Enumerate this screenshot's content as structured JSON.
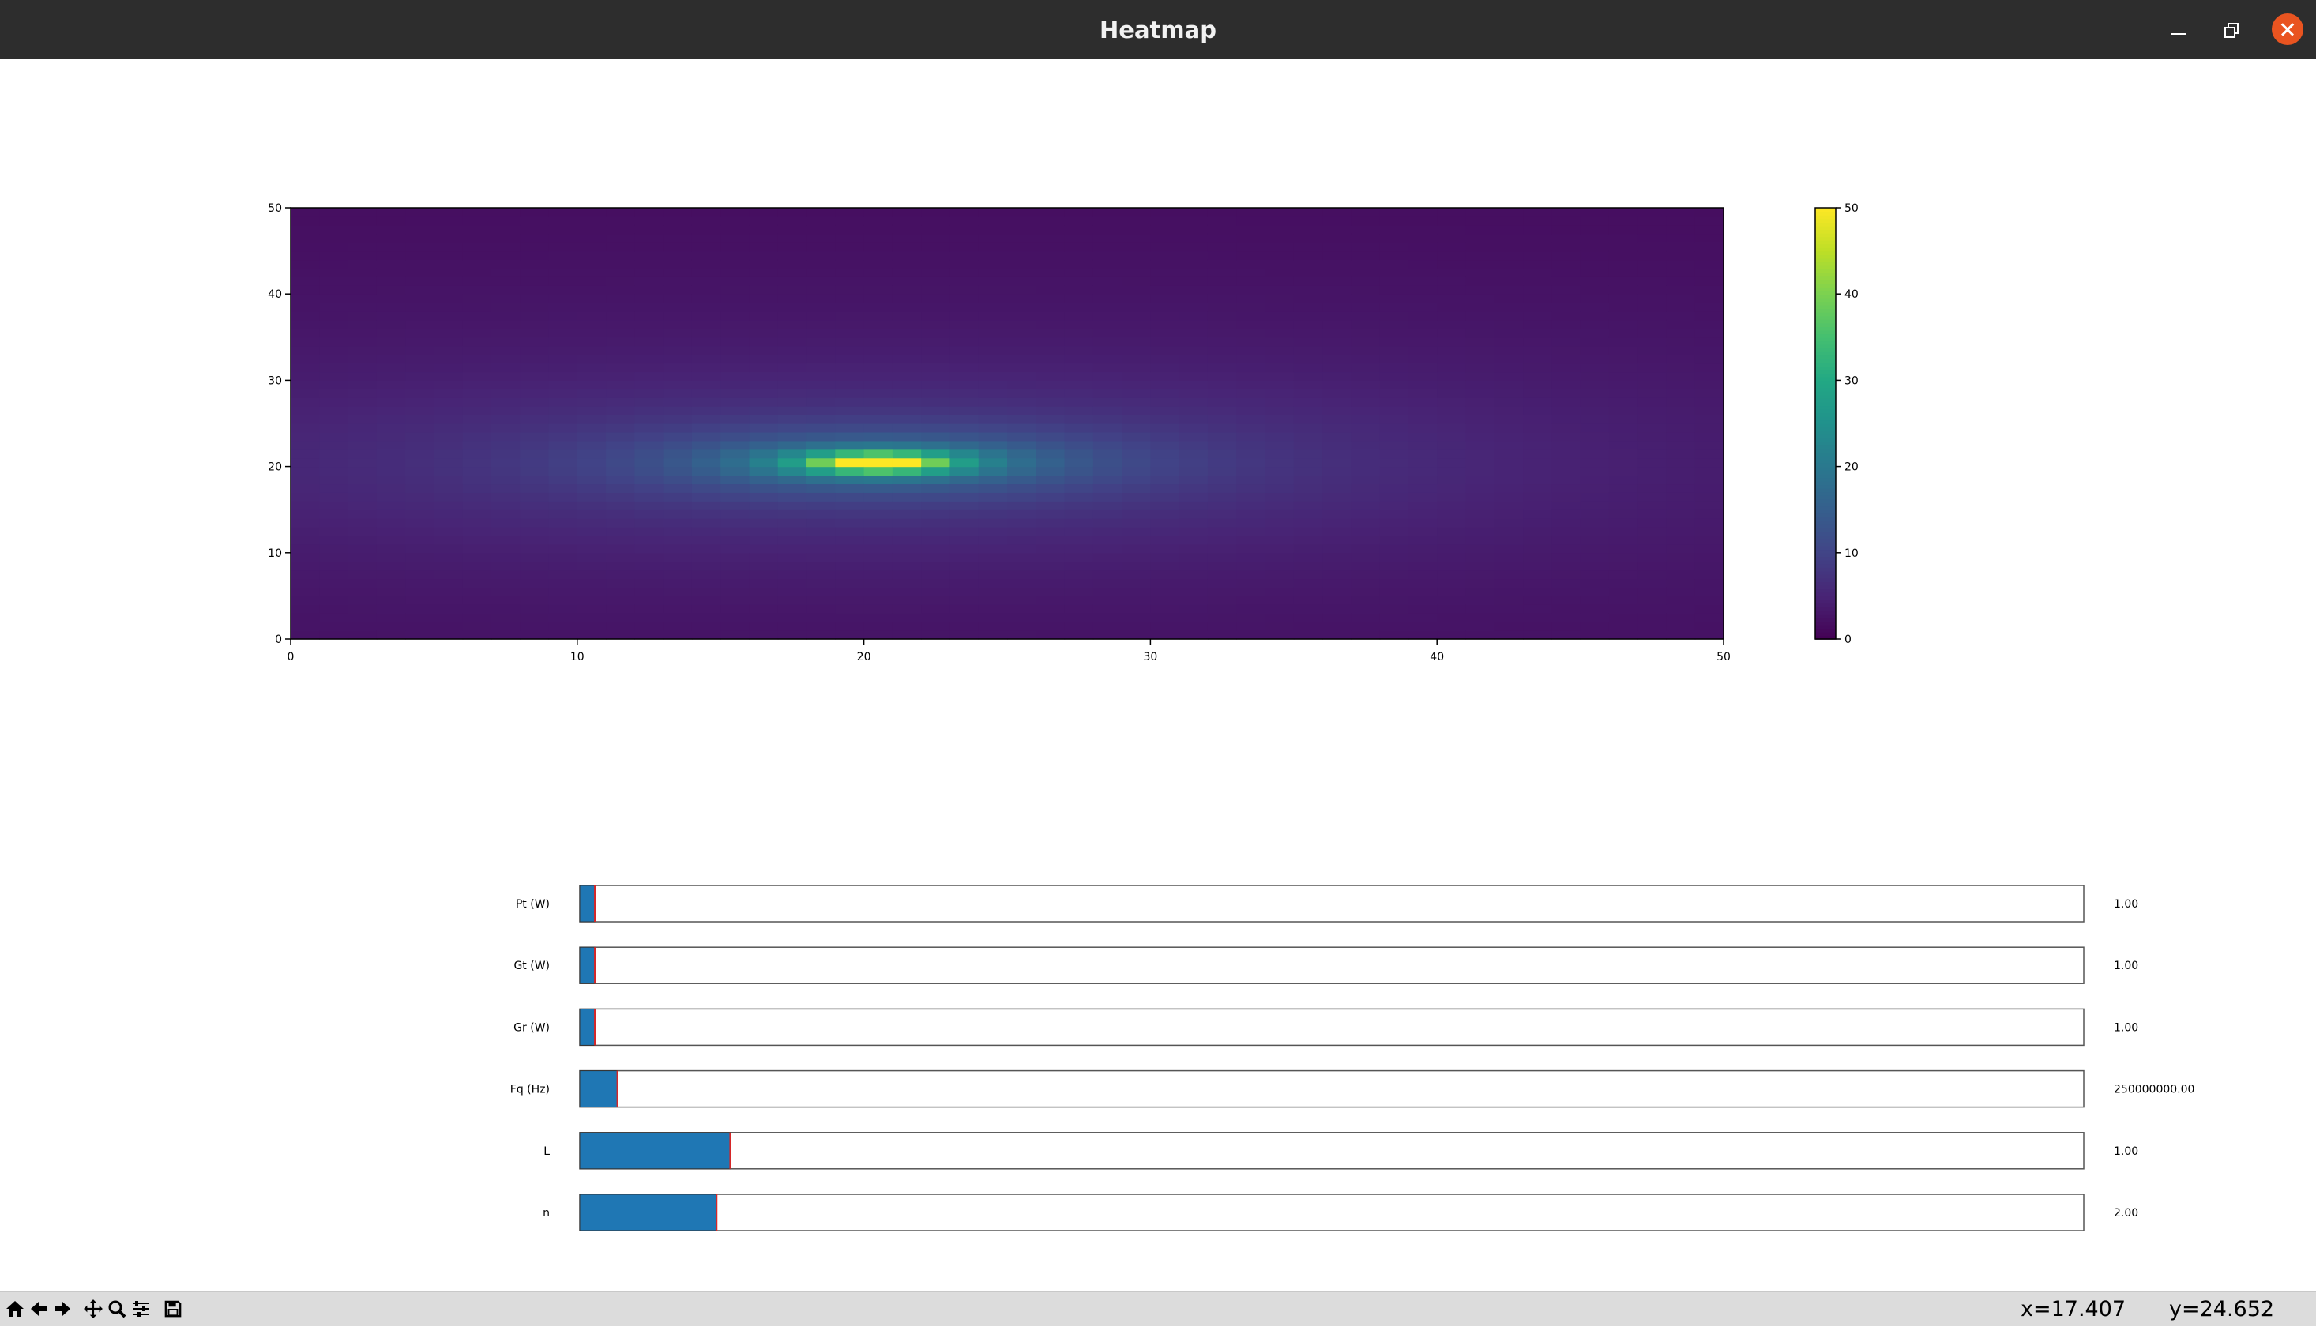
{
  "window": {
    "title": "Heatmap"
  },
  "heatmap": {
    "x_ticks": [
      "0",
      "10",
      "20",
      "30",
      "40",
      "50"
    ],
    "y_ticks": [
      "0",
      "10",
      "20",
      "30",
      "40",
      "50"
    ],
    "colorbar_ticks": [
      "0",
      "10",
      "20",
      "30",
      "40",
      "50"
    ],
    "colormap": "viridis"
  },
  "chart_data": {
    "type": "heatmap",
    "grid_size": [
      50,
      50
    ],
    "xlim": [
      0,
      50
    ],
    "ylim": [
      0,
      50
    ],
    "vmin": 0,
    "vmax": 50,
    "peak": {
      "x": 20.5,
      "y": 20.5,
      "value": 50
    },
    "colorbar": {
      "min": 0,
      "max": 50,
      "ticks": [
        0,
        10,
        20,
        30,
        40,
        50
      ]
    }
  },
  "sliders": [
    {
      "label": "Pt (W)",
      "value_text": "1.00",
      "fraction": 0.01
    },
    {
      "label": "Gt (W)",
      "value_text": "1.00",
      "fraction": 0.01
    },
    {
      "label": "Gr (W)",
      "value_text": "1.00",
      "fraction": 0.01
    },
    {
      "label": "Fq (Hz)",
      "value_text": "250000000.00",
      "fraction": 0.025
    },
    {
      "label": "L",
      "value_text": "1.00",
      "fraction": 0.1
    },
    {
      "label": "n",
      "value_text": "2.00",
      "fraction": 0.091
    }
  ],
  "colors": {
    "slider_fill": "#1f77b4",
    "slider_marker": "#d62728",
    "titlebar": "#2d2d2d",
    "close": "#e95420"
  },
  "toolbar": {
    "icons": [
      "home-icon",
      "back-arrow-icon",
      "forward-arrow-icon",
      "pan-icon",
      "zoom-icon",
      "configure-subplots-icon",
      "save-icon"
    ],
    "x_readout": "x=17.407",
    "y_readout": "y=24.652"
  }
}
